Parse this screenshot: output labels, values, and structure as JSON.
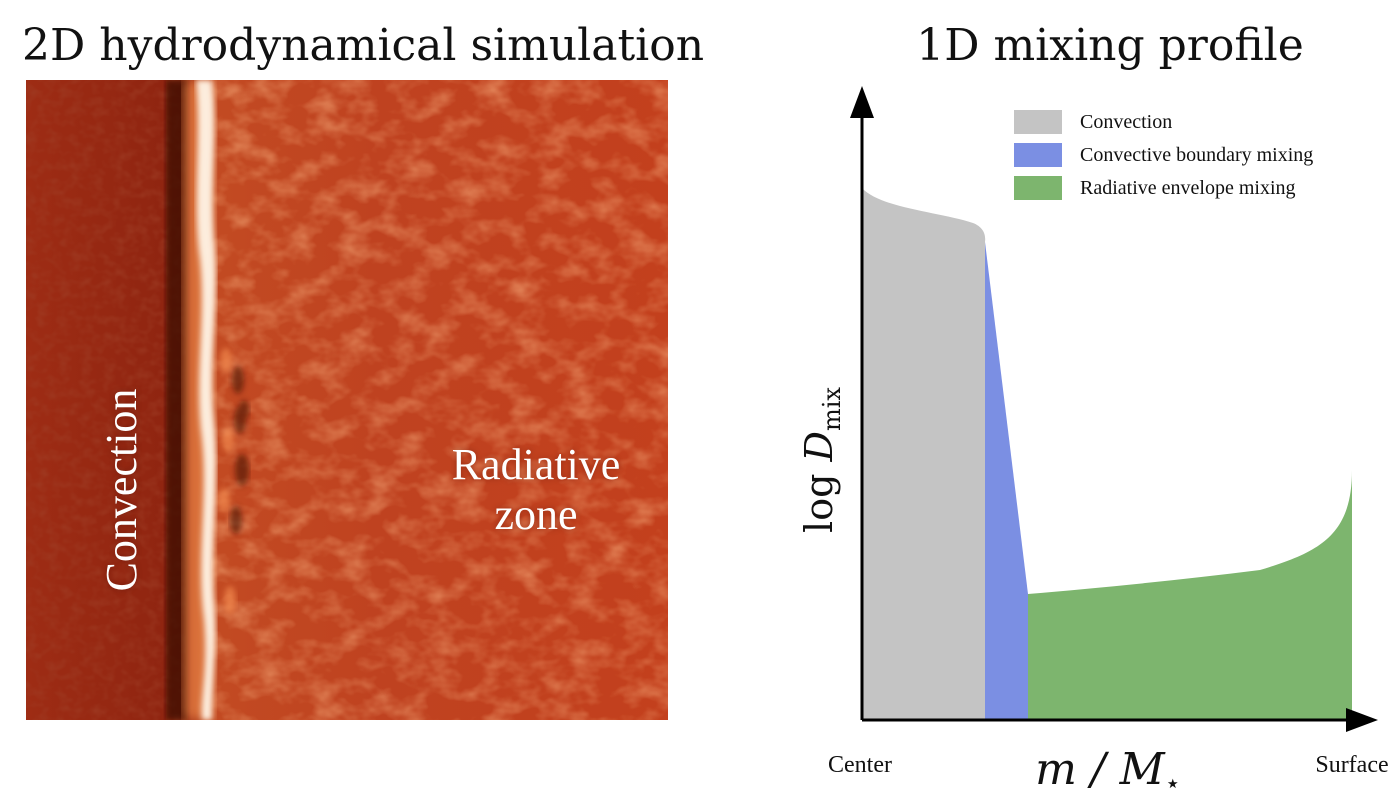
{
  "left_panel": {
    "title": "2D hydrodynamical simulation",
    "label_convection": "Convection",
    "label_radiative_line1": "Radiative",
    "label_radiative_line2": "zone"
  },
  "right_panel": {
    "title": "1D mixing profile",
    "y_axis_label_prefix": "log ",
    "y_axis_label_main": "D",
    "y_axis_label_sub": "mix",
    "x_axis_label_main": "m / M",
    "x_axis_label_sub": "⋆",
    "x_axis_left_label": "Center",
    "x_axis_right_label": "Surface",
    "legend": [
      {
        "label": "Convection",
        "color": "#c4c4c4"
      },
      {
        "label": "Convective boundary mixing",
        "color": "#7b8fe3"
      },
      {
        "label": "Radiative envelope mixing",
        "color": "#7db56e"
      }
    ]
  }
}
